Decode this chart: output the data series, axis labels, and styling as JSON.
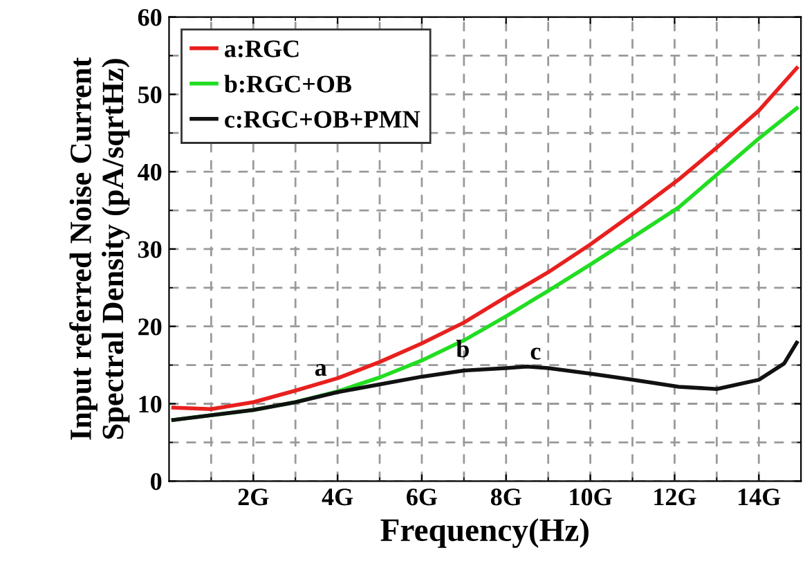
{
  "chart_data": {
    "type": "line",
    "xlabel": "Frequency(Hz)",
    "ylabel": "Input referred Noise Current\nSpectral Density (pA/sqrtHz)",
    "xlim": [
      0,
      15
    ],
    "ylim": [
      0,
      60
    ],
    "xticks": [
      {
        "value": 2,
        "label": "2G"
      },
      {
        "value": 4,
        "label": "4G"
      },
      {
        "value": 6,
        "label": "6G"
      },
      {
        "value": 8,
        "label": "8G"
      },
      {
        "value": 10,
        "label": "10G"
      },
      {
        "value": 12,
        "label": "12G"
      },
      {
        "value": 14,
        "label": "14G"
      }
    ],
    "yticks": [
      0,
      10,
      20,
      30,
      40,
      50,
      60
    ],
    "grid": true,
    "legend": "top left",
    "line_style": "solid",
    "marker": "none",
    "series": [
      {
        "name": "a:RGC",
        "color": "#e8201e",
        "x": [
          0.1,
          1.0,
          2.0,
          3.0,
          4.0,
          5.0,
          6.0,
          7.0,
          8.0,
          9.0,
          10.0,
          11.0,
          12.1,
          13.0,
          14.0,
          14.9
        ],
        "values": [
          9.5,
          9.3,
          10.2,
          11.7,
          13.3,
          15.4,
          17.8,
          20.5,
          23.8,
          27.0,
          30.6,
          34.5,
          39.0,
          43.1,
          47.9,
          53.4
        ]
      },
      {
        "name": "b:RGC+OB",
        "color": "#22dd22",
        "x": [
          0.1,
          2.0,
          3.0,
          4.0,
          5.0,
          6.0,
          7.0,
          8.0,
          9.0,
          10.0,
          11.0,
          12.1,
          13.0,
          14.0,
          14.9
        ],
        "values": [
          7.9,
          9.2,
          10.2,
          11.6,
          13.4,
          15.6,
          18.2,
          21.3,
          24.6,
          28.0,
          31.5,
          35.4,
          39.6,
          44.3,
          48.2
        ]
      },
      {
        "name": "c:RGC+OB+PMN",
        "color": "#111111",
        "x": [
          0.1,
          2.0,
          3.0,
          4.0,
          5.0,
          6.0,
          7.0,
          8.0,
          8.5,
          9.0,
          10.0,
          11.0,
          12.1,
          13.0,
          14.0,
          14.6,
          14.9
        ],
        "values": [
          7.9,
          9.2,
          10.2,
          11.5,
          12.5,
          13.5,
          14.3,
          14.6,
          14.8,
          14.6,
          13.9,
          13.1,
          12.2,
          11.9,
          13.1,
          15.2,
          17.9
        ]
      }
    ],
    "annotations": [
      "a",
      "b",
      "c"
    ]
  }
}
